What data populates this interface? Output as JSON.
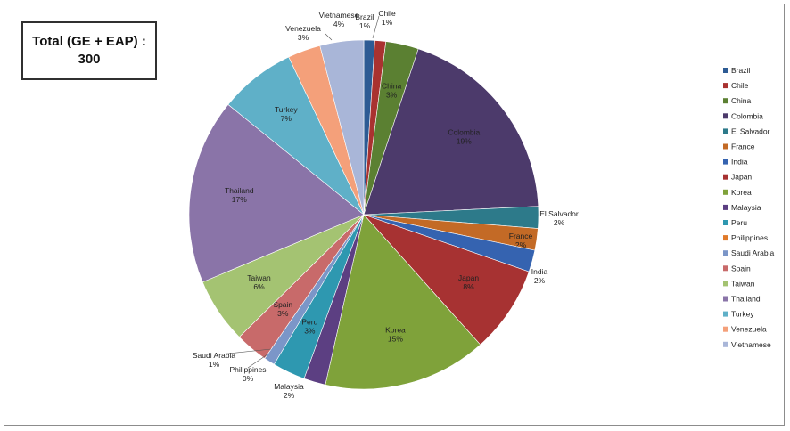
{
  "total_box": {
    "line1": "Total (GE + EAP) :",
    "line2": "300"
  },
  "chart_data": {
    "type": "pie",
    "title": "",
    "legend_placement": "right",
    "slices": [
      {
        "label": "Brazil",
        "value": 1,
        "pct_label": "1%",
        "color": "#2d5b94"
      },
      {
        "label": "Chile",
        "value": 1,
        "pct_label": "1%",
        "color": "#a93230"
      },
      {
        "label": "China",
        "value": 3,
        "pct_label": "3%",
        "color": "#5b8032"
      },
      {
        "label": "Colombia",
        "value": 19,
        "pct_label": "19%",
        "color": "#4c3a6b"
      },
      {
        "label": "El Salvador",
        "value": 2,
        "pct_label": "2%",
        "color": "#2d7a8a"
      },
      {
        "label": "France",
        "value": 2,
        "pct_label": "2%",
        "color": "#c36a26"
      },
      {
        "label": "India",
        "value": 2,
        "pct_label": "2%",
        "color": "#3563b0"
      },
      {
        "label": "Japan",
        "value": 8,
        "pct_label": "8%",
        "color": "#a73232"
      },
      {
        "label": "Korea",
        "value": 15,
        "pct_label": "15%",
        "color": "#7fa23a"
      },
      {
        "label": "Malaysia",
        "value": 2,
        "pct_label": "2%",
        "color": "#5c3f82"
      },
      {
        "label": "Peru",
        "value": 3,
        "pct_label": "3%",
        "color": "#2e98b0"
      },
      {
        "label": "Philippines",
        "value": 0,
        "pct_label": "0%",
        "color": "#e07a2a"
      },
      {
        "label": "Saudi Arabia",
        "value": 1,
        "pct_label": "1%",
        "color": "#7b96c8"
      },
      {
        "label": "Spain",
        "value": 3,
        "pct_label": "3%",
        "color": "#c86a6a"
      },
      {
        "label": "Taiwan",
        "value": 6,
        "pct_label": "6%",
        "color": "#a4c372"
      },
      {
        "label": "Thailand",
        "value": 17,
        "pct_label": "17%",
        "color": "#8a74a8"
      },
      {
        "label": "Turkey",
        "value": 7,
        "pct_label": "7%",
        "color": "#5fb0c8"
      },
      {
        "label": "Venezuela",
        "value": 3,
        "pct_label": "3%",
        "color": "#f4a07a"
      },
      {
        "label": "Vietnamese",
        "value": 4,
        "pct_label": "4%",
        "color": "#a9b6d8"
      }
    ]
  }
}
